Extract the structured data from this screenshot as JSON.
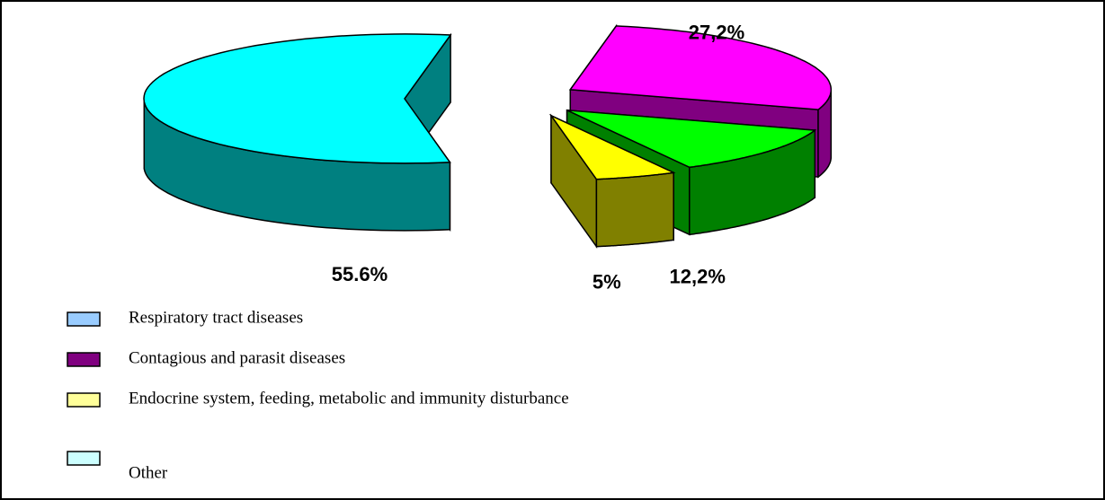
{
  "chart_data": {
    "type": "pie",
    "categories": [
      "Respiratory tract diseases",
      "Contagious and parasit diseases",
      "Endocrine system, feeding, metabolic and immunity disturbance",
      "Other"
    ],
    "legend_colors": [
      "#99ccff",
      "#800080",
      "#ffff99",
      "#ccffff"
    ],
    "values": [
      55.6,
      27.2,
      12.2,
      5
    ],
    "value_labels": [
      "55.6%",
      "27,2%",
      "12,2%",
      "5%"
    ],
    "colors": [
      "#00ffff",
      "#ff00ff",
      "#00ff00",
      "#ffff00"
    ],
    "side_colors": [
      "#008080",
      "#800080",
      "#008000",
      "#808000"
    ],
    "three_d": true
  }
}
